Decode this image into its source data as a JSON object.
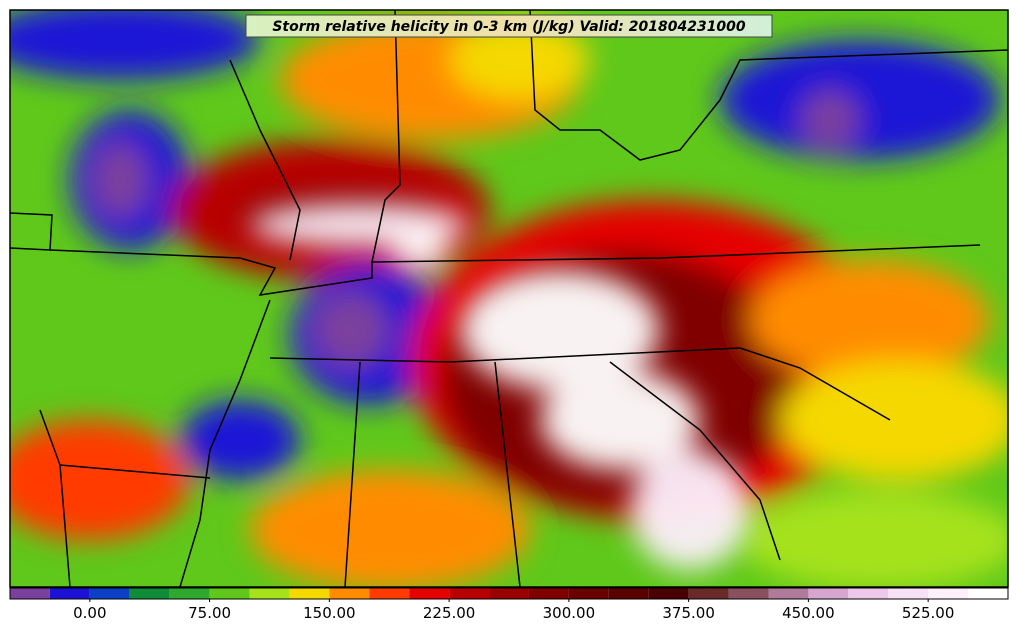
{
  "title": "Storm relative helicity in 0-3 km (J/kg) Valid: 201804231000",
  "colorbar": {
    "bins": [
      -50,
      -25,
      0,
      25,
      50,
      75,
      100,
      125,
      150,
      175,
      200,
      225,
      250,
      275,
      300,
      325,
      350,
      375,
      400,
      425,
      450,
      475,
      500,
      525,
      550,
      575
    ],
    "colors": [
      "#7b3f9e",
      "#1c12d6",
      "#0b3fc4",
      "#0e8c3a",
      "#2fa82e",
      "#5fc81a",
      "#a6e21a",
      "#f5d800",
      "#ff8c00",
      "#ff3b00",
      "#e60000",
      "#b80000",
      "#9a0000",
      "#800000",
      "#6b0000",
      "#5a0000",
      "#4a0000",
      "#6b2a2a",
      "#8a5060",
      "#b07a9a",
      "#d6a6d0",
      "#ecc8ea",
      "#f8e0f6",
      "#fdf0fc",
      "#ffffff"
    ],
    "ticks": [
      {
        "value": 0,
        "label": "0.00"
      },
      {
        "value": 75,
        "label": "75.00"
      },
      {
        "value": 150,
        "label": "150.00"
      },
      {
        "value": 225,
        "label": "225.00"
      },
      {
        "value": 300,
        "label": "300.00"
      },
      {
        "value": 375,
        "label": "375.00"
      },
      {
        "value": 450,
        "label": "450.00"
      },
      {
        "value": 525,
        "label": "525.00"
      }
    ]
  }
}
